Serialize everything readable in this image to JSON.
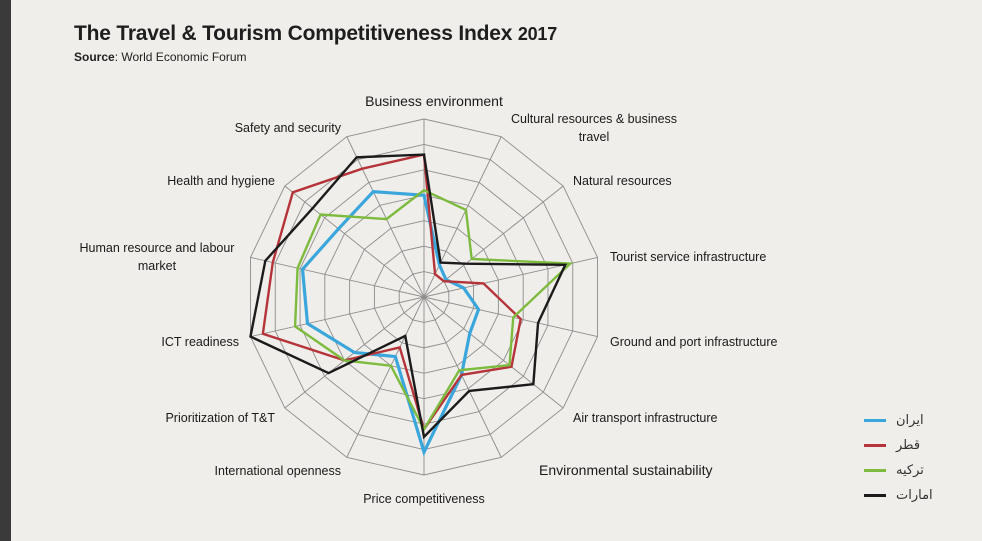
{
  "header": {
    "title": "The Travel & Tourism Competitiveness Index",
    "year": "2017",
    "source_label": "Source",
    "source_text": ": World Economic Forum"
  },
  "chart_data": {
    "type": "radar",
    "title": "The Travel & Tourism Competitiveness Index 2017",
    "rlim": [
      0,
      7
    ],
    "rings": 7,
    "grid": true,
    "legend_position": "bottom-right",
    "categories": [
      "Business environment",
      "Cultural resources & business travel",
      "Natural resources",
      "Tourist service infrastructure",
      "Ground and port infrastructure",
      "Air transport infrastructure",
      "Environmental sustainability",
      "Price competitiveness",
      "International openness",
      "Prioritization of T&T",
      "ICT readiness",
      "Human resource and labour market",
      "Health and hygiene",
      "Safety and security"
    ],
    "series": [
      {
        "name": "ایران",
        "color": "#3aa6dc",
        "values": [
          4.0,
          1.4,
          1.1,
          1.6,
          2.2,
          2.3,
          3.4,
          6.1,
          2.6,
          3.5,
          4.7,
          4.9,
          4.3,
          4.6
        ]
      },
      {
        "name": "قطر",
        "color": "#b5343a",
        "values": [
          5.6,
          1.0,
          1.0,
          2.4,
          3.9,
          4.4,
          3.4,
          5.2,
          2.2,
          4.0,
          6.5,
          6.1,
          6.6,
          5.6
        ]
      },
      {
        "name": "ترکیه",
        "color": "#7dbb3e",
        "values": [
          4.2,
          3.8,
          2.4,
          5.9,
          3.6,
          4.3,
          3.2,
          5.2,
          3.0,
          4.0,
          5.2,
          5.1,
          5.2,
          3.4
        ]
      },
      {
        "name": "امارات",
        "color": "#1b1b1b",
        "values": [
          5.6,
          1.5,
          2.1,
          5.7,
          4.6,
          5.5,
          4.1,
          5.5,
          1.7,
          4.8,
          7.0,
          6.4,
          5.6,
          6.1
        ]
      }
    ]
  }
}
